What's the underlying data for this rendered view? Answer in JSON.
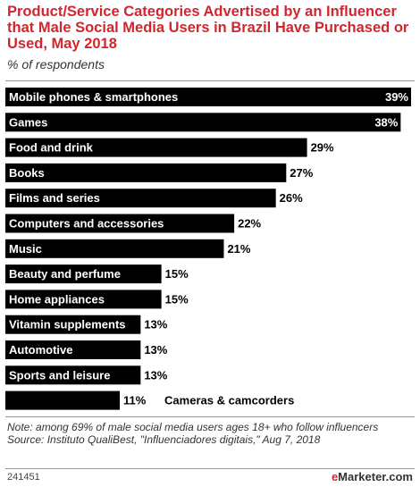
{
  "header": {
    "title": "Product/Service Categories Advertised by an Influencer that Male Social Media Users in Brazil Have Purchased or Used, May 2018",
    "subtitle": "% of respondents"
  },
  "chart_data": {
    "type": "bar",
    "orientation": "horizontal",
    "title": "Product/Service Categories Advertised by an Influencer that Male Social Media Users in Brazil Have Purchased or Used, May 2018",
    "subtitle": "% of respondents",
    "categories": [
      "Mobile phones & smartphones",
      "Games",
      "Food and drink",
      "Books",
      "Films and series",
      "Computers and accessories",
      "Music",
      "Beauty and perfume",
      "Home appliances",
      "Vitamin supplements",
      "Automotive",
      "Sports and leisure",
      "Cameras & camcorders"
    ],
    "values": [
      39,
      38,
      29,
      27,
      26,
      22,
      21,
      15,
      15,
      13,
      13,
      13,
      11
    ],
    "value_labels": [
      "39%",
      "38%",
      "29%",
      "27%",
      "26%",
      "22%",
      "21%",
      "15%",
      "15%",
      "13%",
      "13%",
      "13%",
      "11%"
    ],
    "unit": "%",
    "xlim": [
      0,
      39
    ],
    "grid": false,
    "bar_color": "#000000"
  },
  "footer": {
    "note": "Note: among 69% of male social media users ages 18+ who follow influencers",
    "source": "Source: Instituto QualiBest, \"Influenciadores digitais,\" Aug 7, 2018",
    "chart_id": "241451",
    "brand_prefix": "e",
    "brand_rest": "Marketer.com"
  },
  "colors": {
    "title": "#d2262f",
    "bar": "#000000",
    "brand_accent": "#d2262f"
  }
}
